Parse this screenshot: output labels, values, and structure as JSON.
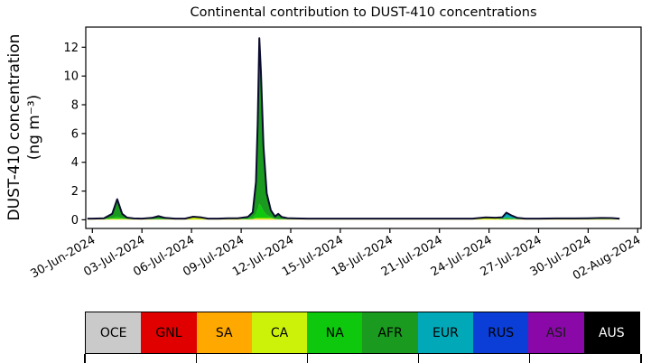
{
  "chart_data": {
    "type": "area",
    "stacked": true,
    "title": "Continental contribution to DUST-410 concentrations",
    "ylabel": "DUST-410 concentration (ng m⁻³)",
    "ylabel_line1": "DUST-410 concentration",
    "ylabel_line2": "(ng m⁻³)",
    "xlabel": "",
    "grid": false,
    "legend_position": "bottom",
    "xlim": [
      -0.4,
      33.2
    ],
    "ylim": [
      -0.6,
      13.4
    ],
    "x_unit": "days_since_30-Jun-2024",
    "x_tick_days": [
      0,
      3,
      6,
      9,
      12,
      15,
      18,
      21,
      24,
      27,
      30,
      33
    ],
    "x_tick_labels": [
      "30-Jun-2024",
      "03-Jul-2024",
      "06-Jul-2024",
      "09-Jul-2024",
      "12-Jul-2024",
      "15-Jul-2024",
      "18-Jul-2024",
      "21-Jul-2024",
      "24-Jul-2024",
      "27-Jul-2024",
      "30-Jul-2024",
      "02-Aug-2024"
    ],
    "y_ticks": [
      0,
      2,
      4,
      6,
      8,
      10,
      12
    ],
    "outline_color": "#0c0c30",
    "peak_annotations": [
      {
        "date": "02-Jul-2024",
        "total": 1.4,
        "dominant": "AFR"
      },
      {
        "date": "10-Jul-2024",
        "total": 12.7,
        "dominant": "AFR"
      },
      {
        "date": "25-Jul-2024",
        "total": 0.5,
        "dominant": "EUR"
      }
    ],
    "x": [
      -0.3,
      0,
      0.7,
      1.2,
      1.5,
      1.8,
      2.1,
      2.5,
      3,
      3.6,
      4,
      4.4,
      5,
      5.6,
      6.1,
      6.6,
      7,
      7.6,
      8.2,
      8.8,
      9.4,
      9.7,
      9.9,
      10.0,
      10.1,
      10.2,
      10.35,
      10.55,
      10.8,
      11.05,
      11.25,
      11.45,
      11.8,
      12.3,
      13,
      14,
      15.5,
      17,
      18.5,
      20,
      21.5,
      23,
      23.8,
      24.4,
      24.8,
      25.05,
      25.35,
      25.7,
      26.2,
      27,
      28,
      29,
      30,
      30.8,
      31.4,
      31.9
    ],
    "series": [
      {
        "name": "OCE",
        "color": "#cacaca",
        "values": [
          0.01,
          0.01,
          0.01,
          0.01,
          0.01,
          0.01,
          0.01,
          0.01,
          0.01,
          0.01,
          0.01,
          0.01,
          0.01,
          0.01,
          0.01,
          0.01,
          0.01,
          0.01,
          0.01,
          0.01,
          0.01,
          0.01,
          0.01,
          0.01,
          0.01,
          0.01,
          0.01,
          0.01,
          0.01,
          0.01,
          0.01,
          0.01,
          0.01,
          0.01,
          0.01,
          0.01,
          0.01,
          0.01,
          0.01,
          0.01,
          0.01,
          0.01,
          0.01,
          0.01,
          0.01,
          0.01,
          0.01,
          0.01,
          0.01,
          0.01,
          0.01,
          0.01,
          0.01,
          0.01,
          0.01,
          0.01
        ]
      },
      {
        "name": "GNL",
        "color": "#e00000",
        "values": [
          0,
          0,
          0,
          0,
          0,
          0,
          0,
          0,
          0,
          0,
          0,
          0,
          0,
          0,
          0,
          0,
          0,
          0,
          0,
          0,
          0,
          0,
          0,
          0,
          0,
          0,
          0,
          0,
          0,
          0,
          0,
          0,
          0,
          0,
          0,
          0,
          0,
          0,
          0,
          0,
          0,
          0,
          0,
          0,
          0,
          0,
          0,
          0,
          0,
          0,
          0,
          0,
          0,
          0,
          0,
          0
        ]
      },
      {
        "name": "SA",
        "color": "#ffa800",
        "values": [
          0.01,
          0.01,
          0.01,
          0.01,
          0.01,
          0.01,
          0.01,
          0.01,
          0.01,
          0.01,
          0.01,
          0.01,
          0.01,
          0.01,
          0.01,
          0.01,
          0.01,
          0.01,
          0.01,
          0.01,
          0.01,
          0.03,
          0.03,
          0.03,
          0.03,
          0.03,
          0.03,
          0.03,
          0.03,
          0.03,
          0.01,
          0.01,
          0.01,
          0.01,
          0.01,
          0.01,
          0.01,
          0.01,
          0.01,
          0.01,
          0.01,
          0.01,
          0.01,
          0.01,
          0.01,
          0.01,
          0.01,
          0.01,
          0.01,
          0.01,
          0.01,
          0.01,
          0.01,
          0.01,
          0.01,
          0.01
        ]
      },
      {
        "name": "CA",
        "color": "#cdf20a",
        "values": [
          0.02,
          0.02,
          0.02,
          0.05,
          0.06,
          0.05,
          0.04,
          0.02,
          0.02,
          0.02,
          0.02,
          0.02,
          0.02,
          0.02,
          0.15,
          0.1,
          0.02,
          0.02,
          0.04,
          0.04,
          0.02,
          0.02,
          0.08,
          0.08,
          0.08,
          0.08,
          0.08,
          0.08,
          0.08,
          0.02,
          0.02,
          0.02,
          0.02,
          0.02,
          0.02,
          0.02,
          0.02,
          0.02,
          0.02,
          0.02,
          0.02,
          0.02,
          0.1,
          0.08,
          0.02,
          0.02,
          0.02,
          0.02,
          0.02,
          0.02,
          0.03,
          0.03,
          0.02,
          0.03,
          0.03,
          0.02
        ]
      },
      {
        "name": "NA",
        "color": "#0dc80d",
        "values": [
          0.01,
          0.01,
          0.01,
          0.05,
          0.15,
          0.04,
          0.01,
          0.01,
          0.01,
          0.01,
          0.01,
          0.01,
          0.01,
          0.01,
          0.01,
          0.01,
          0.01,
          0.01,
          0.01,
          0.01,
          0.05,
          0.1,
          0.3,
          0.6,
          1.0,
          0.85,
          0.5,
          0.22,
          0.08,
          0.02,
          0.02,
          0.01,
          0.01,
          0.01,
          0.01,
          0.01,
          0.01,
          0.01,
          0.01,
          0.01,
          0.01,
          0.01,
          0.01,
          0.01,
          0.03,
          0.08,
          0.05,
          0.02,
          0.01,
          0.01,
          0.01,
          0.01,
          0.01,
          0.02,
          0.02,
          0.01
        ]
      },
      {
        "name": "AFR",
        "color": "#1a9a1e",
        "values": [
          0.03,
          0.03,
          0.05,
          0.3,
          1.2,
          0.3,
          0.08,
          0.04,
          0.03,
          0.08,
          0.2,
          0.08,
          0.03,
          0.03,
          0.03,
          0.03,
          0.03,
          0.03,
          0.03,
          0.03,
          0.1,
          0.35,
          2.2,
          6.0,
          11.5,
          9.3,
          4.5,
          1.5,
          0.45,
          0.15,
          0.35,
          0.15,
          0.06,
          0.04,
          0.03,
          0.03,
          0.03,
          0.03,
          0.03,
          0.03,
          0.03,
          0.03,
          0.03,
          0.03,
          0.03,
          0.05,
          0.04,
          0.03,
          0.03,
          0.03,
          0.03,
          0.03,
          0.03,
          0.03,
          0.03,
          0.03
        ]
      },
      {
        "name": "EUR",
        "color": "#00a8b8",
        "values": [
          0.005,
          0.005,
          0.005,
          0.005,
          0.005,
          0.005,
          0.005,
          0.005,
          0.005,
          0.005,
          0.005,
          0.005,
          0.005,
          0.005,
          0.005,
          0.005,
          0.005,
          0.005,
          0.005,
          0.005,
          0.005,
          0.005,
          0.005,
          0.005,
          0.005,
          0.005,
          0.005,
          0.005,
          0.005,
          0.005,
          0.005,
          0.005,
          0.005,
          0.005,
          0.005,
          0.005,
          0.005,
          0.005,
          0.005,
          0.005,
          0.005,
          0.005,
          0.005,
          0.005,
          0.08,
          0.33,
          0.18,
          0.05,
          0.005,
          0.005,
          0.005,
          0.005,
          0.02,
          0.03,
          0.02,
          0.005
        ]
      },
      {
        "name": "RUS",
        "color": "#0a3ed7",
        "values": [
          0,
          0,
          0,
          0,
          0,
          0,
          0,
          0,
          0,
          0,
          0,
          0,
          0,
          0,
          0,
          0,
          0,
          0,
          0,
          0,
          0,
          0,
          0,
          0,
          0,
          0,
          0,
          0,
          0,
          0,
          0,
          0,
          0,
          0,
          0,
          0,
          0,
          0,
          0,
          0,
          0,
          0,
          0,
          0,
          0,
          0,
          0,
          0,
          0,
          0,
          0,
          0,
          0,
          0,
          0,
          0
        ]
      },
      {
        "name": "ASI",
        "color": "#8a08a8",
        "values": [
          0,
          0,
          0,
          0,
          0,
          0,
          0,
          0,
          0,
          0,
          0,
          0,
          0,
          0,
          0,
          0,
          0,
          0,
          0,
          0,
          0,
          0,
          0,
          0,
          0,
          0,
          0,
          0,
          0,
          0,
          0,
          0,
          0,
          0,
          0,
          0,
          0,
          0,
          0,
          0,
          0,
          0,
          0,
          0,
          0,
          0,
          0,
          0,
          0,
          0,
          0,
          0,
          0,
          0,
          0,
          0
        ]
      },
      {
        "name": "AUS",
        "color": "#000000",
        "values": [
          0,
          0,
          0,
          0,
          0,
          0,
          0,
          0,
          0,
          0,
          0,
          0,
          0,
          0,
          0,
          0,
          0,
          0,
          0,
          0,
          0,
          0,
          0,
          0,
          0,
          0,
          0,
          0,
          0,
          0,
          0,
          0,
          0,
          0,
          0,
          0,
          0,
          0,
          0,
          0,
          0,
          0,
          0,
          0,
          0,
          0,
          0,
          0,
          0,
          0,
          0,
          0,
          0,
          0,
          0,
          0
        ]
      }
    ]
  },
  "legend": {
    "regions": [
      {
        "label": "OCE",
        "color": "#cacaca",
        "text_color": "#000000"
      },
      {
        "label": "GNL",
        "color": "#e00000",
        "text_color": "#000000"
      },
      {
        "label": "SA",
        "color": "#ffa800",
        "text_color": "#000000"
      },
      {
        "label": "CA",
        "color": "#cdf20a",
        "text_color": "#000000"
      },
      {
        "label": "NA",
        "color": "#0dc80d",
        "text_color": "#000000"
      },
      {
        "label": "AFR",
        "color": "#1a9a1e",
        "text_color": "#000000"
      },
      {
        "label": "EUR",
        "color": "#00a8b8",
        "text_color": "#000000"
      },
      {
        "label": "RUS",
        "color": "#0a3ed7",
        "text_color": "#000000"
      },
      {
        "label": "ASI",
        "color": "#8a08a8",
        "text_color": "#1a1a1a"
      },
      {
        "label": "AUS",
        "color": "#000000",
        "text_color": "#ffffff"
      }
    ]
  }
}
